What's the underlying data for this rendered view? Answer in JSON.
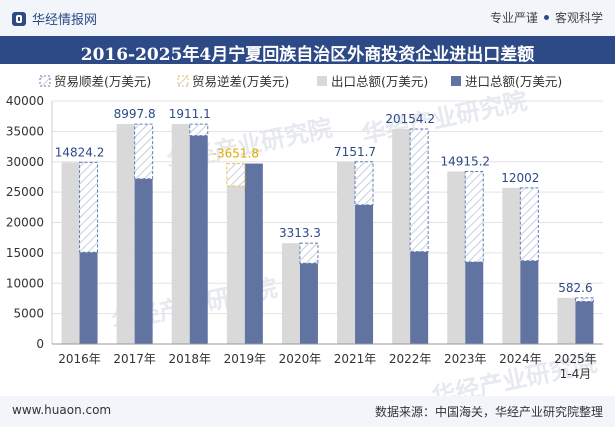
{
  "header": {
    "brand": "华经情报网",
    "tagline_left": "专业严谨",
    "tagline_right": "客观科学"
  },
  "title": "2016-2025年4月宁夏回族自治区外商投资企业进出口差额",
  "watermark": "华经产业研究院",
  "footer": {
    "url": "www.huaon.com",
    "source": "数据来源：中国海关，华经产业研究院整理"
  },
  "colors": {
    "export": "#d9d9d9",
    "import": "#6173a1",
    "surplus_border": "#5d7db3",
    "deficit_border": "#e8c24a",
    "deficit_label": "#e0a800",
    "header_bg": "#2d4a86"
  },
  "chart_data": {
    "type": "bar",
    "categories": [
      "2016年",
      "2017年",
      "2018年",
      "2019年",
      "2020年",
      "2021年",
      "2022年",
      "2023年",
      "2024年",
      "2025年\n1-4月"
    ],
    "series": [
      {
        "name": "出口总额(万美元)",
        "values": [
          29900,
          36200,
          36200,
          26000,
          16600,
          30000,
          35400,
          28400,
          25700,
          7600
        ]
      },
      {
        "name": "进口总额(万美元)",
        "values": [
          15100,
          27200,
          34300,
          29700,
          13300,
          22900,
          15200,
          13500,
          13700,
          7000
        ]
      }
    ],
    "balance": {
      "values": [
        14824.2,
        8997.8,
        1911.1,
        -3651.8,
        3313.3,
        7151.7,
        20154.2,
        14915.2,
        12002,
        582.6
      ],
      "labels": [
        "14824.2",
        "8997.8",
        "1911.1",
        "-3651.8",
        "3313.3",
        "7151.7",
        "20154.2",
        "14915.2",
        "12002",
        "582.6"
      ]
    },
    "legend": [
      "贸易顺差(万美元)",
      "贸易逆差(万美元)",
      "出口总额(万美元)",
      "进口总额(万美元)"
    ],
    "yticks": [
      "0",
      "5000",
      "10000",
      "15000",
      "20000",
      "25000",
      "30000",
      "35000",
      "40000"
    ],
    "ylim": [
      0,
      40000
    ],
    "grid": true,
    "legend_position": "top"
  }
}
